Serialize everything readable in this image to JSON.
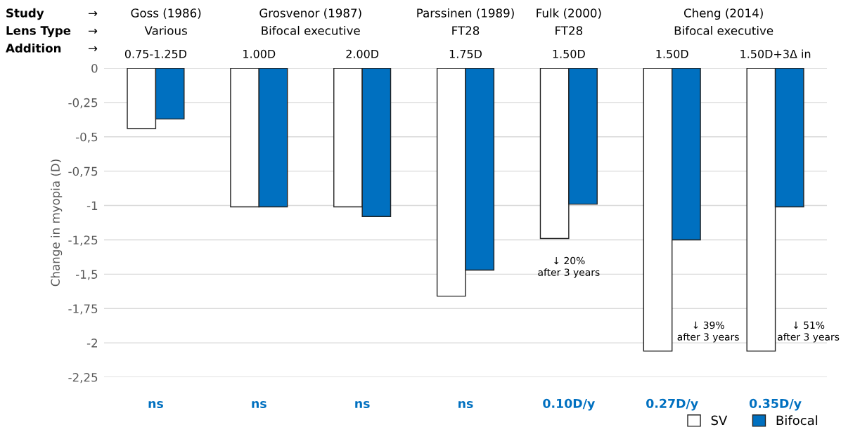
{
  "chart_data": {
    "type": "bar",
    "ylabel": "Change in myopia (D)",
    "categories": [
      "0.75-1.25D",
      "1.00D",
      "2.00D",
      "1.75D",
      "1.50D",
      "1.50D",
      "1.50D+3Δ in"
    ],
    "series": [
      {
        "name": "SV",
        "color": "#ffffff",
        "values": [
          -0.44,
          -1.01,
          -1.01,
          -1.66,
          -1.24,
          -2.06,
          -2.06
        ]
      },
      {
        "name": "Bifocal",
        "color": "#0070c0",
        "values": [
          -0.37,
          -1.01,
          -1.08,
          -1.47,
          -0.99,
          -1.25,
          -1.01
        ]
      }
    ],
    "ylim": [
      -2.25,
      0
    ],
    "yticks": [
      {
        "value": 0,
        "label": "0"
      },
      {
        "value": -0.25,
        "label": "-0,25"
      },
      {
        "value": -0.5,
        "label": "-0,5"
      },
      {
        "value": -0.75,
        "label": "-0,75"
      },
      {
        "value": -1,
        "label": "-1"
      },
      {
        "value": -1.25,
        "label": "-1,25"
      },
      {
        "value": -1.5,
        "label": "-1,5"
      },
      {
        "value": -1.75,
        "label": "-1,75"
      },
      {
        "value": -2,
        "label": "-2"
      },
      {
        "value": -2.25,
        "label": "-2,25"
      }
    ],
    "grid": "y",
    "legend": "bottom right",
    "annotations": [
      "Study",
      "→",
      "Lens Type",
      "→",
      "Addition",
      "→",
      "Goss (1986)",
      "Grosvenor (1987)",
      "Parssinen (1989)",
      "Fulk (2000)",
      "Cheng (2014)",
      "Various",
      "Bifocal executive",
      "FT28",
      "FT28",
      "Bifocal executive",
      "ns",
      "ns",
      "ns",
      "ns",
      "0.10D/y",
      "0.27D/y",
      "0.35D/y",
      "↓ 20%\nafter 3 years",
      "↓ 39%\nafter 3 years",
      "↓ 51%\nafter 3 years"
    ]
  }
}
